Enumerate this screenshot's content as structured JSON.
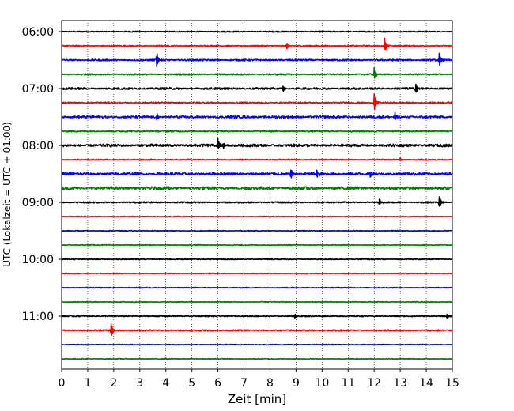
{
  "chart_data": {
    "type": "line",
    "subtype": "helicorder-seismogram",
    "title": "",
    "xlabel": "Zeit  [min]",
    "ylabel": "UTC (Lokalzeit = UTC + 01:00)",
    "xlim": [
      0,
      15
    ],
    "x_ticks": [
      "0",
      "1",
      "2",
      "3",
      "4",
      "5",
      "6",
      "7",
      "8",
      "9",
      "10",
      "11",
      "12",
      "13",
      "14",
      "15"
    ],
    "y_tick_labels": [
      "06:00",
      "07:00",
      "08:00",
      "09:00",
      "10:00",
      "11:00"
    ],
    "grid": "vertical dotted at each minute",
    "trace_interval_min": 15,
    "trace_color_cycle": [
      "#000000",
      "#ff0000",
      "#0000ff",
      "#008000"
    ],
    "traces": [
      {
        "start": "06:00",
        "color": "#000000",
        "noise": 0.35,
        "events": []
      },
      {
        "start": "06:15",
        "color": "#ff0000",
        "noise": 0.35,
        "events": [
          {
            "t": 8.65,
            "amp": 4
          },
          {
            "t": 12.4,
            "amp": 10
          }
        ]
      },
      {
        "start": "06:30",
        "color": "#0000ff",
        "noise": 0.5,
        "events": [
          {
            "t": 3.65,
            "amp": 11
          },
          {
            "t": 14.5,
            "amp": 9
          }
        ]
      },
      {
        "start": "06:45",
        "color": "#008000",
        "noise": 0.45,
        "events": [
          {
            "t": 12.0,
            "amp": 8
          }
        ]
      },
      {
        "start": "07:00",
        "color": "#000000",
        "noise": 0.6,
        "events": [
          {
            "t": 8.5,
            "amp": 4
          },
          {
            "t": 13.6,
            "amp": 7
          }
        ]
      },
      {
        "start": "07:15",
        "color": "#ff0000",
        "noise": 0.5,
        "events": [
          {
            "t": 12.0,
            "amp": 11
          }
        ]
      },
      {
        "start": "07:30",
        "color": "#0000ff",
        "noise": 0.7,
        "events": [
          {
            "t": 3.65,
            "amp": 5
          },
          {
            "t": 12.8,
            "amp": 5
          }
        ]
      },
      {
        "start": "07:45",
        "color": "#008000",
        "noise": 0.45,
        "events": []
      },
      {
        "start": "08:00",
        "color": "#000000",
        "noise": 0.8,
        "events": [
          {
            "t": 6.0,
            "amp": 9
          },
          {
            "t": 6.2,
            "amp": 4
          }
        ]
      },
      {
        "start": "08:15",
        "color": "#ff0000",
        "noise": 0.35,
        "events": [
          {
            "t": 13.0,
            "amp": 3
          }
        ]
      },
      {
        "start": "08:30",
        "color": "#0000ff",
        "noise": 0.8,
        "events": [
          {
            "t": 8.8,
            "amp": 9
          },
          {
            "t": 9.8,
            "amp": 4
          },
          {
            "t": 11.85,
            "amp": 4
          }
        ]
      },
      {
        "start": "08:45",
        "color": "#008000",
        "noise": 0.9,
        "events": [
          {
            "t": 4.1,
            "amp": 3
          }
        ]
      },
      {
        "start": "09:00",
        "color": "#000000",
        "noise": 0.45,
        "events": [
          {
            "t": 12.2,
            "amp": 4
          },
          {
            "t": 14.5,
            "amp": 10
          }
        ]
      },
      {
        "start": "09:15",
        "color": "#ff0000",
        "noise": 0.25,
        "events": []
      },
      {
        "start": "09:30",
        "color": "#0000ff",
        "noise": 0.25,
        "events": []
      },
      {
        "start": "09:45",
        "color": "#008000",
        "noise": 0.25,
        "events": []
      },
      {
        "start": "10:00",
        "color": "#000000",
        "noise": 0.3,
        "events": []
      },
      {
        "start": "10:15",
        "color": "#ff0000",
        "noise": 0.25,
        "events": []
      },
      {
        "start": "10:30",
        "color": "#0000ff",
        "noise": 0.25,
        "events": []
      },
      {
        "start": "10:45",
        "color": "#008000",
        "noise": 0.25,
        "events": []
      },
      {
        "start": "11:00",
        "color": "#000000",
        "noise": 0.35,
        "events": [
          {
            "t": 8.95,
            "amp": 3
          },
          {
            "t": 14.8,
            "amp": 3
          }
        ]
      },
      {
        "start": "11:15",
        "color": "#ff0000",
        "noise": 0.45,
        "events": [
          {
            "t": 1.9,
            "amp": 10
          }
        ]
      },
      {
        "start": "11:30",
        "color": "#0000ff",
        "noise": 0.25,
        "events": []
      },
      {
        "start": "11:45",
        "color": "#008000",
        "noise": 0.25,
        "events": []
      }
    ]
  }
}
